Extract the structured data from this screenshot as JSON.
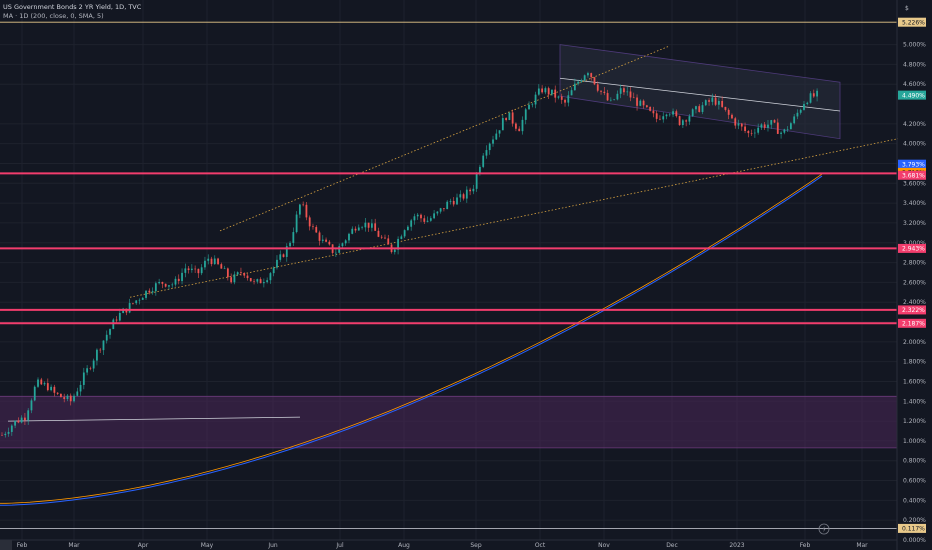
{
  "header": {
    "title": "US Government Bonds 2 YR Yield, 1D, TVC",
    "indicator": "MA · 1D (200, close, 0, SMA, 5)"
  },
  "corner_label": "$",
  "colors": {
    "background": "#131722",
    "grid": "#1e222d",
    "up": "#26a69a",
    "down": "#ef5350",
    "support": "#f23d6d",
    "range_fill": "#4a2757",
    "channel": "#7e57c2",
    "ma_blue": "#2962ff",
    "ma_orange": "#ff9800",
    "dotted_trend": "#d9a441"
  },
  "chart_data": {
    "type": "candlestick",
    "title": "US Government Bonds 2 YR Yield, 1D, TVC",
    "ylim": [
      0,
      5.45
    ],
    "x_ticks": [
      "Feb",
      "Mar",
      "Apr",
      "May",
      "Jun",
      "Jul",
      "Aug",
      "Sep",
      "Oct",
      "Nov",
      "Dec",
      "2023",
      "Feb",
      "Mar"
    ],
    "y_ticks": [
      "5.000%",
      "4.800%",
      "4.600%",
      "4.200%",
      "4.000%",
      "3.800%",
      "3.600%",
      "3.400%",
      "3.200%",
      "3.000%",
      "2.800%",
      "2.600%",
      "2.400%",
      "2.200%",
      "2.000%",
      "1.800%",
      "1.600%",
      "1.400%",
      "1.200%",
      "1.000%",
      "0.800%",
      "0.600%",
      "0.400%",
      "0.200%",
      "0.000%"
    ],
    "y_tick_values": [
      5.0,
      4.8,
      4.6,
      4.2,
      4.0,
      3.8,
      3.6,
      3.4,
      3.2,
      3.0,
      2.8,
      2.6,
      2.4,
      2.2,
      2.0,
      1.8,
      1.6,
      1.4,
      1.2,
      1.0,
      0.8,
      0.6,
      0.4,
      0.2,
      0.0
    ],
    "price_path": [
      [
        0.0,
        1.06
      ],
      [
        0.02,
        1.18
      ],
      [
        0.04,
        1.25
      ],
      [
        0.06,
        1.58
      ],
      [
        0.08,
        1.55
      ],
      [
        0.09,
        1.48
      ],
      [
        0.12,
        1.4
      ],
      [
        0.14,
        1.62
      ],
      [
        0.17,
        1.95
      ],
      [
        0.2,
        2.25
      ],
      [
        0.23,
        2.4
      ],
      [
        0.26,
        2.55
      ],
      [
        0.28,
        2.6
      ],
      [
        0.3,
        2.58
      ],
      [
        0.32,
        2.75
      ],
      [
        0.34,
        2.68
      ],
      [
        0.36,
        2.85
      ],
      [
        0.38,
        2.75
      ],
      [
        0.4,
        2.62
      ],
      [
        0.42,
        2.72
      ],
      [
        0.44,
        2.58
      ],
      [
        0.46,
        2.65
      ],
      [
        0.48,
        2.8
      ],
      [
        0.5,
        2.98
      ],
      [
        0.52,
        3.4
      ],
      [
        0.54,
        3.15
      ],
      [
        0.56,
        3.0
      ],
      [
        0.58,
        2.9
      ],
      [
        0.6,
        3.05
      ],
      [
        0.62,
        3.2
      ],
      [
        0.64,
        3.18
      ],
      [
        0.66,
        3.05
      ],
      [
        0.68,
        2.92
      ],
      [
        0.7,
        3.15
      ],
      [
        0.72,
        3.28
      ],
      [
        0.74,
        3.22
      ],
      [
        0.76,
        3.3
      ],
      [
        0.78,
        3.42
      ],
      [
        0.8,
        3.45
      ],
      [
        0.82,
        3.55
      ],
      [
        0.84,
        3.95
      ],
      [
        0.86,
        4.1
      ],
      [
        0.88,
        4.3
      ],
      [
        0.9,
        4.15
      ],
      [
        0.92,
        4.4
      ],
      [
        0.94,
        4.55
      ],
      [
        0.96,
        4.5
      ],
      [
        0.98,
        4.4
      ],
      [
        1.0,
        4.6
      ],
      [
        1.02,
        4.75
      ],
      [
        1.04,
        4.55
      ],
      [
        1.06,
        4.4
      ],
      [
        1.08,
        4.55
      ],
      [
        1.1,
        4.45
      ],
      [
        1.12,
        4.35
      ],
      [
        1.14,
        4.25
      ],
      [
        1.16,
        4.35
      ],
      [
        1.18,
        4.22
      ],
      [
        1.2,
        4.3
      ],
      [
        1.22,
        4.38
      ],
      [
        1.24,
        4.45
      ],
      [
        1.26,
        4.32
      ],
      [
        1.28,
        4.2
      ],
      [
        1.3,
        4.1
      ],
      [
        1.32,
        4.18
      ],
      [
        1.34,
        4.2
      ],
      [
        1.36,
        4.1
      ],
      [
        1.38,
        4.25
      ],
      [
        1.4,
        4.45
      ],
      [
        1.42,
        4.49
      ]
    ],
    "horizontal_levels": [
      3.7,
      2.943,
      2.322,
      2.187
    ],
    "price_badges": [
      {
        "label": "5.226%",
        "value": 5.226,
        "bg": "#e8c98a",
        "fg": "#131722"
      },
      {
        "label": "4.490%",
        "value": 4.49,
        "bg": "#26a69a",
        "fg": "#ffffff"
      },
      {
        "label": "3.793%",
        "value": 3.793,
        "bg": "#2962ff",
        "fg": "#ffffff"
      },
      {
        "label": "3.710%",
        "value": 3.71,
        "bg": "#ff9800",
        "fg": "#131722"
      },
      {
        "label": "3.681%",
        "value": 3.681,
        "bg": "#f23d6d",
        "fg": "#ffffff"
      },
      {
        "label": "2.943%",
        "value": 2.943,
        "bg": "#f23d6d",
        "fg": "#ffffff"
      },
      {
        "label": "2.322%",
        "value": 2.322,
        "bg": "#f23d6d",
        "fg": "#ffffff"
      },
      {
        "label": "2.187%",
        "value": 2.187,
        "bg": "#f23d6d",
        "fg": "#ffffff"
      },
      {
        "label": "0.117%",
        "value": 0.117,
        "bg": "#e8c98a",
        "fg": "#131722"
      }
    ],
    "range_box": {
      "from": 1.0,
      "to": 1.33
    },
    "legend": "none",
    "grid": true
  }
}
